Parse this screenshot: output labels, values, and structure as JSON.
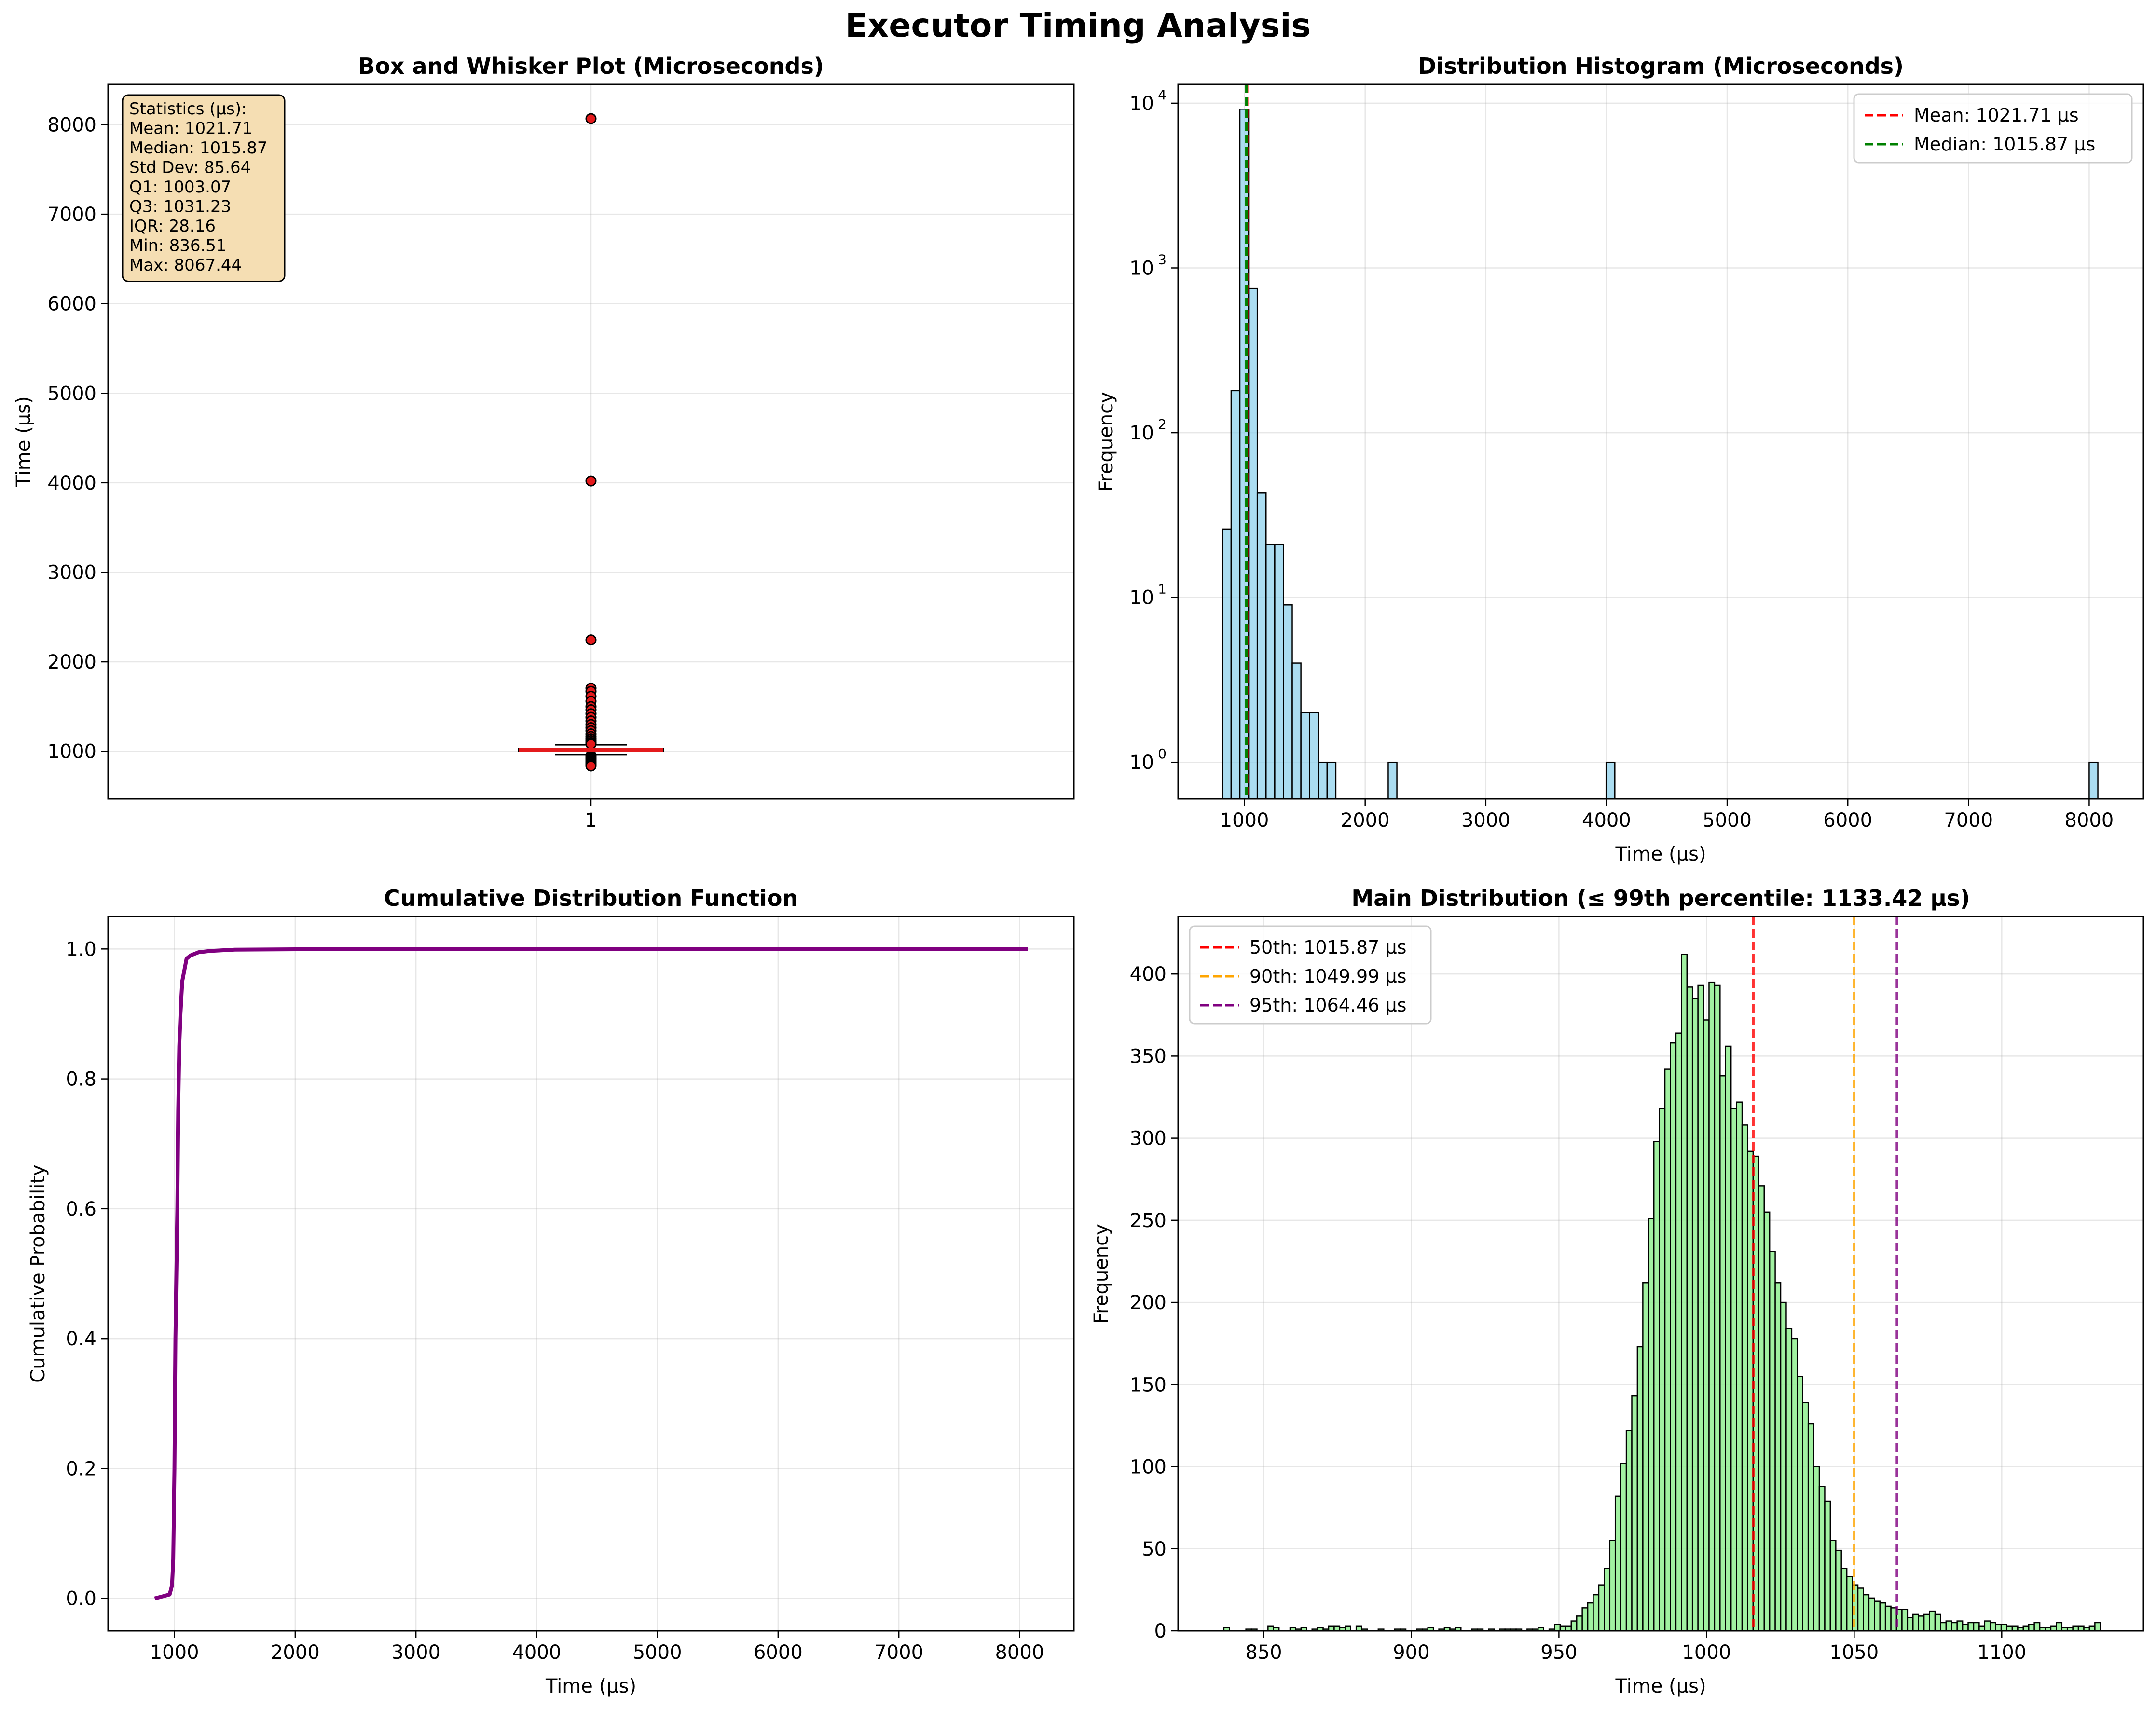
{
  "figure_title": "Executor Timing Analysis",
  "chart_data": [
    {
      "id": "box",
      "type": "box",
      "title": "Box and Whisker Plot (Microseconds)",
      "xlabel": "",
      "ylabel": "Time (µs)",
      "ylim": [
        470,
        8450
      ],
      "yticks": [
        1000,
        2000,
        3000,
        4000,
        5000,
        6000,
        7000,
        8000
      ],
      "xticks": [
        "1"
      ],
      "grid": true,
      "box": {
        "q1": 1003.07,
        "median": 1015.87,
        "q3": 1031.23,
        "whisker_low": 961,
        "whisker_high": 1073
      },
      "outliers": [
        8067.44,
        4020,
        2245,
        1705,
        1670,
        1615,
        1560,
        1500,
        1465,
        1420,
        1380,
        1340,
        1300,
        1265,
        1230,
        1195,
        1165,
        1140,
        1120,
        1100,
        1090,
        1080,
        950,
        935,
        920,
        905,
        890,
        875,
        860,
        850,
        836.51
      ],
      "stats_box": {
        "lines": [
          "Statistics (µs):",
          "Mean: 1021.71",
          "Median: 1015.87",
          "Std Dev: 85.64",
          "Q1: 1003.07",
          "Q3: 1031.23",
          "IQR: 28.16",
          "Min: 836.51",
          "Max: 8067.44"
        ],
        "fill": "#f5deb3"
      },
      "colors": {
        "median": "#e41a1c",
        "outlier": "#e41a1c"
      }
    },
    {
      "id": "hist",
      "type": "bar",
      "title": "Distribution Histogram (Microseconds)",
      "xlabel": "Time (µs)",
      "ylabel": "Frequency",
      "xlim": [
        450,
        8450
      ],
      "xticks": [
        1000,
        2000,
        3000,
        4000,
        5000,
        6000,
        7000,
        8000
      ],
      "ylim": [
        0.6,
        13000
      ],
      "yscale": "log",
      "yticks": [
        1,
        10,
        100,
        1000,
        10000
      ],
      "ytick_labels": [
        "10",
        "10",
        "10",
        "10",
        "10"
      ],
      "ytick_exponents": [
        "0",
        "1",
        "2",
        "3",
        "4"
      ],
      "grid": true,
      "bins": [
        [
          817.2,
          889.5,
          26
        ],
        [
          889.5,
          961.8,
          180
        ],
        [
          961.8,
          1034.1,
          9200
        ],
        [
          1034.1,
          1106.4,
          750
        ],
        [
          1106.4,
          1178.7,
          43
        ],
        [
          1178.7,
          1251.0,
          21
        ],
        [
          1251.0,
          1323.3,
          21
        ],
        [
          1323.3,
          1395.6,
          9
        ],
        [
          1395.6,
          1467.9,
          4
        ],
        [
          1467.9,
          1540.2,
          2
        ],
        [
          1540.2,
          1612.5,
          2
        ],
        [
          1612.5,
          1684.8,
          1
        ],
        [
          1684.8,
          1757.1,
          1
        ],
        [
          2191.0,
          2263.3,
          1
        ],
        [
          3997.0,
          4069.3,
          1
        ],
        [
          8000.0,
          8072.3,
          1
        ]
      ],
      "vlines": [
        {
          "name": "Mean: 1021.71 µs",
          "x": 1021.71,
          "color": "#ff0000"
        },
        {
          "name": "Median: 1015.87 µs",
          "x": 1015.87,
          "color": "#008000"
        }
      ],
      "legend": "top-right",
      "colors": {
        "bar": "#87ceeb"
      }
    },
    {
      "id": "cdf",
      "type": "line",
      "title": "Cumulative Distribution Function",
      "xlabel": "Time (µs)",
      "ylabel": "Cumulative Probability",
      "xlim": [
        450,
        8450
      ],
      "xticks": [
        1000,
        2000,
        3000,
        4000,
        5000,
        6000,
        7000,
        8000
      ],
      "ylim": [
        -0.05,
        1.05
      ],
      "yticks": [
        0.0,
        0.2,
        0.4,
        0.6,
        0.8,
        1.0
      ],
      "grid": true,
      "points": [
        [
          836.5,
          0.0
        ],
        [
          900,
          0.003
        ],
        [
          960,
          0.006
        ],
        [
          980,
          0.02
        ],
        [
          990,
          0.06
        ],
        [
          1000,
          0.2
        ],
        [
          1008,
          0.4
        ],
        [
          1016,
          0.5
        ],
        [
          1024,
          0.6
        ],
        [
          1031,
          0.75
        ],
        [
          1040,
          0.85
        ],
        [
          1050,
          0.9
        ],
        [
          1064,
          0.95
        ],
        [
          1100,
          0.985
        ],
        [
          1133,
          0.99
        ],
        [
          1200,
          0.995
        ],
        [
          1300,
          0.997
        ],
        [
          1500,
          0.999
        ],
        [
          2000,
          0.9995
        ],
        [
          4000,
          0.9998
        ],
        [
          8067.44,
          1.0
        ]
      ],
      "colors": {
        "line": "#800080"
      }
    },
    {
      "id": "main",
      "type": "bar",
      "title": "Main Distribution (≤ 99th percentile: 1133.42 µs)",
      "xlabel": "Time (µs)",
      "ylabel": "Frequency",
      "xlim": [
        821,
        1148
      ],
      "xticks": [
        850,
        900,
        950,
        1000,
        1050,
        1100
      ],
      "ylim": [
        0,
        435
      ],
      "yticks": [
        0,
        50,
        100,
        150,
        200,
        250,
        300,
        350,
        400
      ],
      "grid": true,
      "bin_start": 836.51,
      "bin_end": 1133.42,
      "counts": [
        2,
        0,
        0,
        0,
        1,
        1,
        0,
        0,
        3,
        2,
        0,
        0,
        2,
        1,
        2,
        0,
        1,
        2,
        1,
        3,
        3,
        2,
        3,
        0,
        3,
        1,
        0,
        0,
        1,
        0,
        0,
        1,
        1,
        0,
        0,
        1,
        1,
        2,
        0,
        1,
        2,
        1,
        2,
        0,
        0,
        1,
        1,
        0,
        1,
        0,
        1,
        1,
        1,
        1,
        0,
        1,
        1,
        2,
        0,
        1,
        4,
        3,
        3,
        6,
        9,
        14,
        17,
        22,
        28,
        38,
        55,
        82,
        102,
        122,
        143,
        173,
        212,
        251,
        298,
        318,
        342,
        358,
        364,
        412,
        392,
        385,
        393,
        372,
        395,
        393,
        338,
        356,
        318,
        322,
        308,
        292,
        289,
        271,
        255,
        231,
        212,
        200,
        184,
        178,
        155,
        139,
        126,
        100,
        88,
        79,
        55,
        49,
        38,
        33,
        28,
        26,
        22,
        20,
        18,
        17,
        15,
        14,
        13,
        13,
        8,
        10,
        9,
        10,
        12,
        10,
        5,
        6,
        5,
        6,
        4,
        5,
        5,
        3,
        6,
        5,
        4,
        4,
        3,
        3,
        2,
        3,
        4,
        5,
        2,
        2,
        3,
        5,
        2,
        2,
        3,
        3,
        2,
        3,
        5
      ],
      "vlines": [
        {
          "name": "50th: 1015.87 µs",
          "x": 1015.87,
          "color": "#ff0000"
        },
        {
          "name": "90th: 1049.99 µs",
          "x": 1049.99,
          "color": "#ffa500"
        },
        {
          "name": "95th: 1064.46 µs",
          "x": 1064.46,
          "color": "#800080"
        }
      ],
      "legend": "top-left",
      "colors": {
        "bar": "#90ee90"
      }
    }
  ]
}
